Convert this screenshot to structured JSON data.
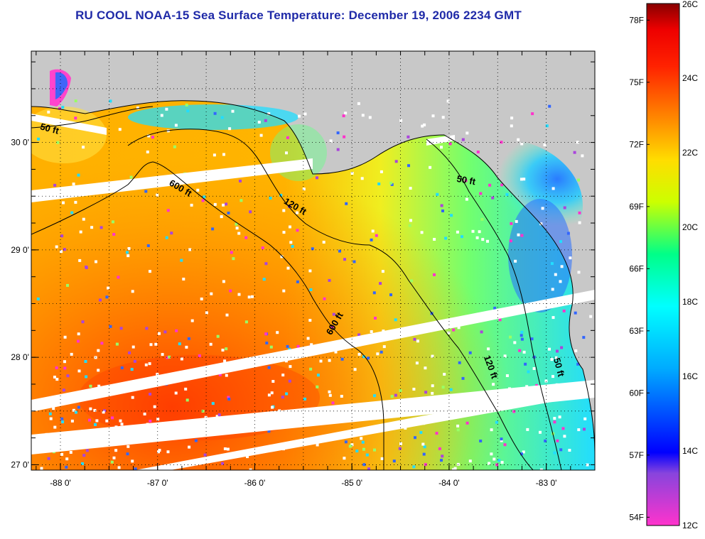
{
  "title": "RU COOL  NOAA-15  Sea Surface Temperature:  December 19, 2006 2234 GMT",
  "map": {
    "lon_range": [
      -88.3,
      -82.5
    ],
    "lat_range": [
      26.95,
      30.85
    ],
    "lon_ticks": [
      {
        "value": -88,
        "label": "-88 0'"
      },
      {
        "value": -87,
        "label": "-87 0'"
      },
      {
        "value": -86,
        "label": "-86 0'"
      },
      {
        "value": -85,
        "label": "-85 0'"
      },
      {
        "value": -84,
        "label": "-84 0'"
      },
      {
        "value": -83,
        "label": "-83 0'"
      }
    ],
    "lat_ticks": [
      {
        "value": 27,
        "label": "27 0'"
      },
      {
        "value": 28,
        "label": "28 0'"
      },
      {
        "value": 29,
        "label": "29 0'"
      },
      {
        "value": 30,
        "label": "30 0'"
      }
    ],
    "gridlines": true,
    "land_color": "#c8c8c8",
    "contours": [
      {
        "label": "50 ft",
        "lon": -88.12,
        "lat": 30.1
      },
      {
        "label": "600 ft",
        "lon": -86.78,
        "lat": 29.55
      },
      {
        "label": "120 ft",
        "lon": -85.6,
        "lat": 29.38
      },
      {
        "label": "50 ft",
        "lon": -83.83,
        "lat": 29.62
      },
      {
        "label": "600 ft",
        "lon": -85.15,
        "lat": 28.3
      },
      {
        "label": "120 ft",
        "lon": -83.6,
        "lat": 27.9
      },
      {
        "label": "50 ft",
        "lon": -82.9,
        "lat": 27.9
      }
    ]
  },
  "colorbar": {
    "celsius_labels": [
      {
        "value": 26,
        "label": "26C"
      },
      {
        "value": 24,
        "label": "24C"
      },
      {
        "value": 22,
        "label": "22C"
      },
      {
        "value": 20,
        "label": "20C"
      },
      {
        "value": 18,
        "label": "18C"
      },
      {
        "value": 16,
        "label": "16C"
      },
      {
        "value": 14,
        "label": "14C"
      },
      {
        "value": 12,
        "label": "12C"
      }
    ],
    "fahrenheit_labels": [
      {
        "value": 78,
        "label": "78F"
      },
      {
        "value": 75,
        "label": "75F"
      },
      {
        "value": 72,
        "label": "72F"
      },
      {
        "value": 69,
        "label": "69F"
      },
      {
        "value": 66,
        "label": "66F"
      },
      {
        "value": 63,
        "label": "63F"
      },
      {
        "value": 60,
        "label": "60F"
      },
      {
        "value": 57,
        "label": "57F"
      },
      {
        "value": 54,
        "label": "54F"
      }
    ],
    "range_c": [
      12,
      26
    ],
    "stops": [
      "#ff33cc",
      "#8844dd",
      "#0000ff",
      "#00aaff",
      "#00ffff",
      "#00ff88",
      "#ccff00",
      "#ffdd00",
      "#ff8800",
      "#ff2200",
      "#ee0000",
      "#880000"
    ]
  }
}
